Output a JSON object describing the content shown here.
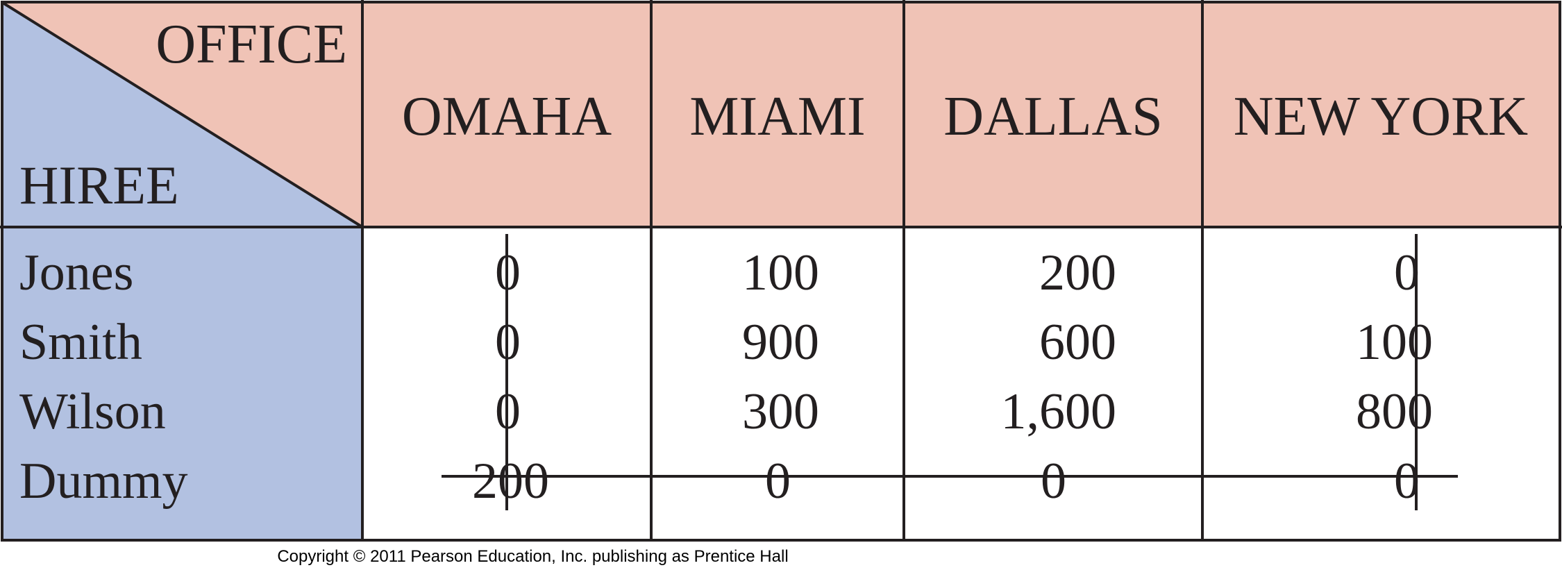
{
  "table": {
    "corner": {
      "top_label": "OFFICE",
      "bottom_label": "HIREE"
    },
    "columns": [
      "OMAHA",
      "MIAMI",
      "DALLAS",
      "NEW YORK"
    ],
    "rows": [
      {
        "hiree": "Jones",
        "values": [
          "0",
          "100",
          "200",
          "0"
        ]
      },
      {
        "hiree": "Smith",
        "values": [
          "0",
          "900",
          "600",
          "100"
        ]
      },
      {
        "hiree": "Wilson",
        "values": [
          "0",
          "300",
          "1,600",
          "800"
        ]
      },
      {
        "hiree": "Dummy",
        "values": [
          "200",
          "0",
          "0",
          "0"
        ]
      }
    ],
    "covering_lines": {
      "columns": [
        "OMAHA",
        "NEW YORK"
      ],
      "rows": [
        "Dummy"
      ]
    },
    "colors": {
      "header": "#f0c3b6",
      "hiree_column": "#b2c1e1",
      "border": "#231f20"
    }
  },
  "footer": {
    "copyright": "Copyright © 2011 Pearson Education, Inc. publishing as Prentice Hall"
  }
}
